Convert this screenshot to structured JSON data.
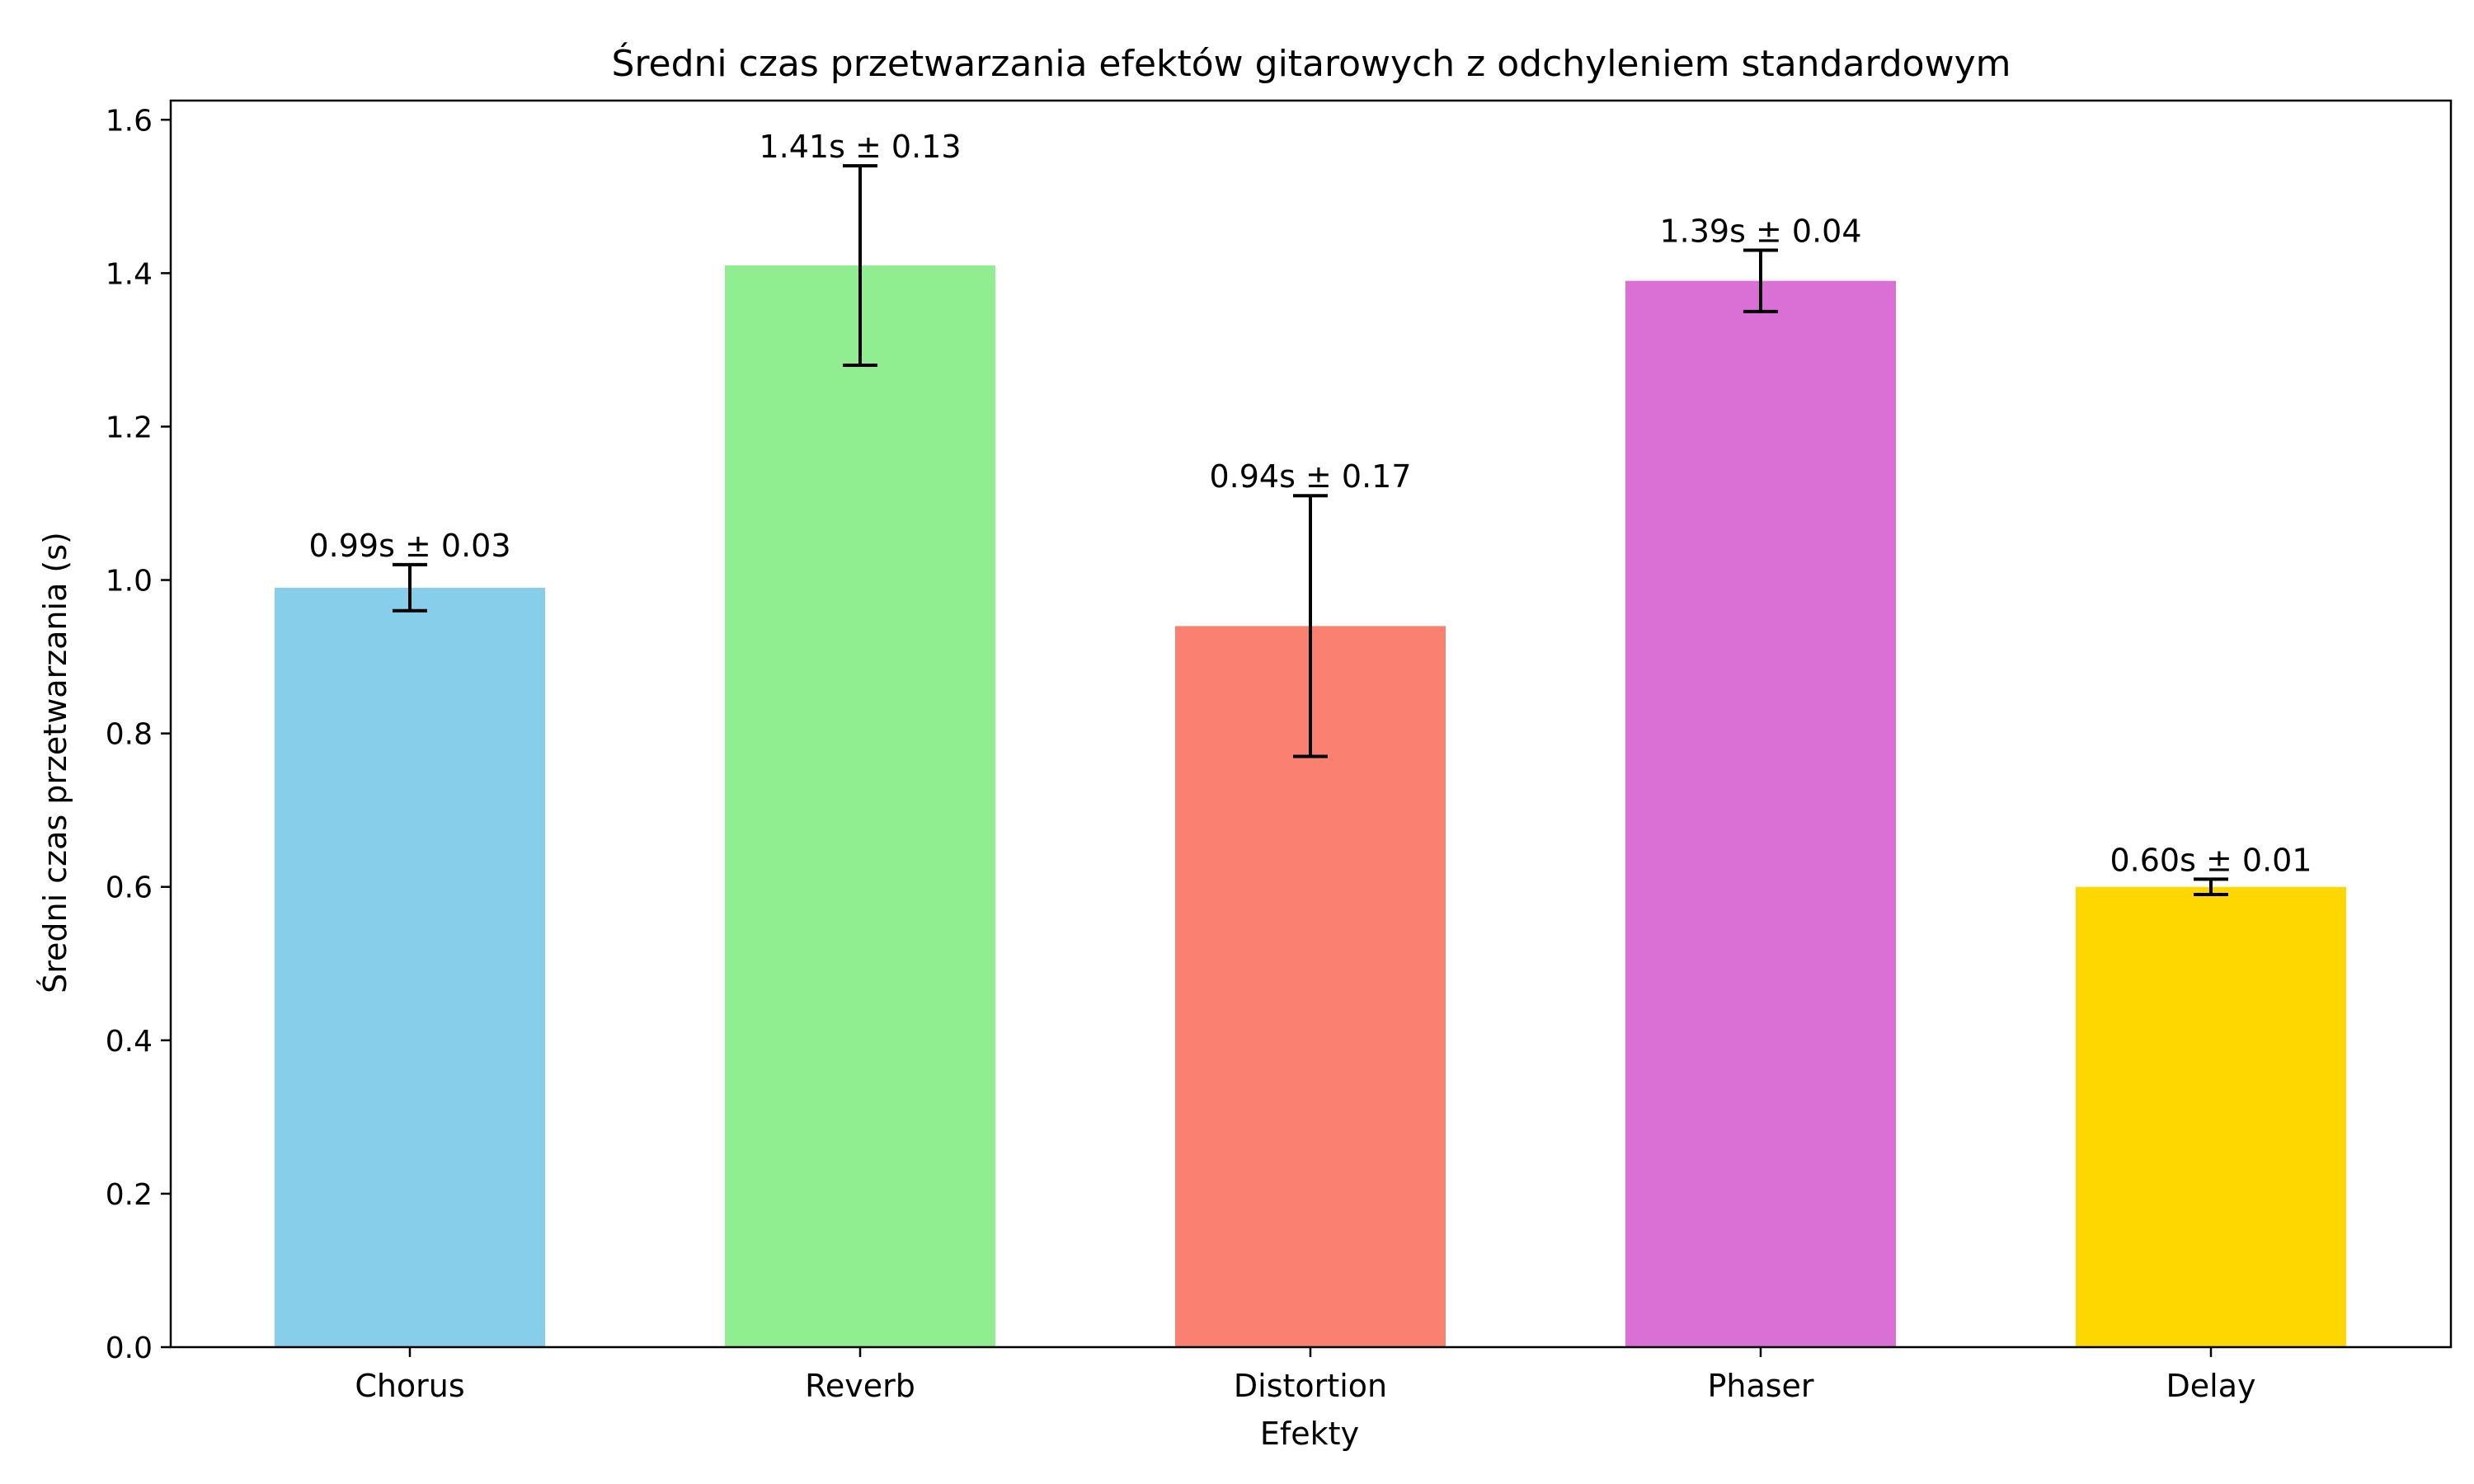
{
  "chart_data": {
    "type": "bar",
    "title": "Średni czas przetwarzania efektów gitarowych z odchyleniem standardowym",
    "xlabel": "Efekty",
    "ylabel": "Średni czas przetwarzania (s)",
    "ylim": [
      0,
      1.6
    ],
    "yticks": [
      0.0,
      0.2,
      0.4,
      0.6,
      0.8,
      1.0,
      1.2,
      1.4,
      1.6
    ],
    "ytick_labels": [
      "0.0",
      "0.2",
      "0.4",
      "0.6",
      "0.8",
      "1.0",
      "1.2",
      "1.4",
      "1.6"
    ],
    "grid": false,
    "categories": [
      "Chorus",
      "Reverb",
      "Distortion",
      "Phaser",
      "Delay"
    ],
    "values": [
      0.99,
      1.41,
      0.94,
      1.39,
      0.6
    ],
    "errors": [
      0.03,
      0.13,
      0.17,
      0.04,
      0.01
    ],
    "colors": [
      "#87CEEB",
      "#90EE90",
      "#FA8072",
      "#DA70D6",
      "#FFD700"
    ],
    "data_labels": [
      "0.99s ± 0.03",
      "1.41s ± 0.13",
      "0.94s ± 0.17",
      "1.39s ± 0.04",
      "0.60s ± 0.01"
    ]
  }
}
